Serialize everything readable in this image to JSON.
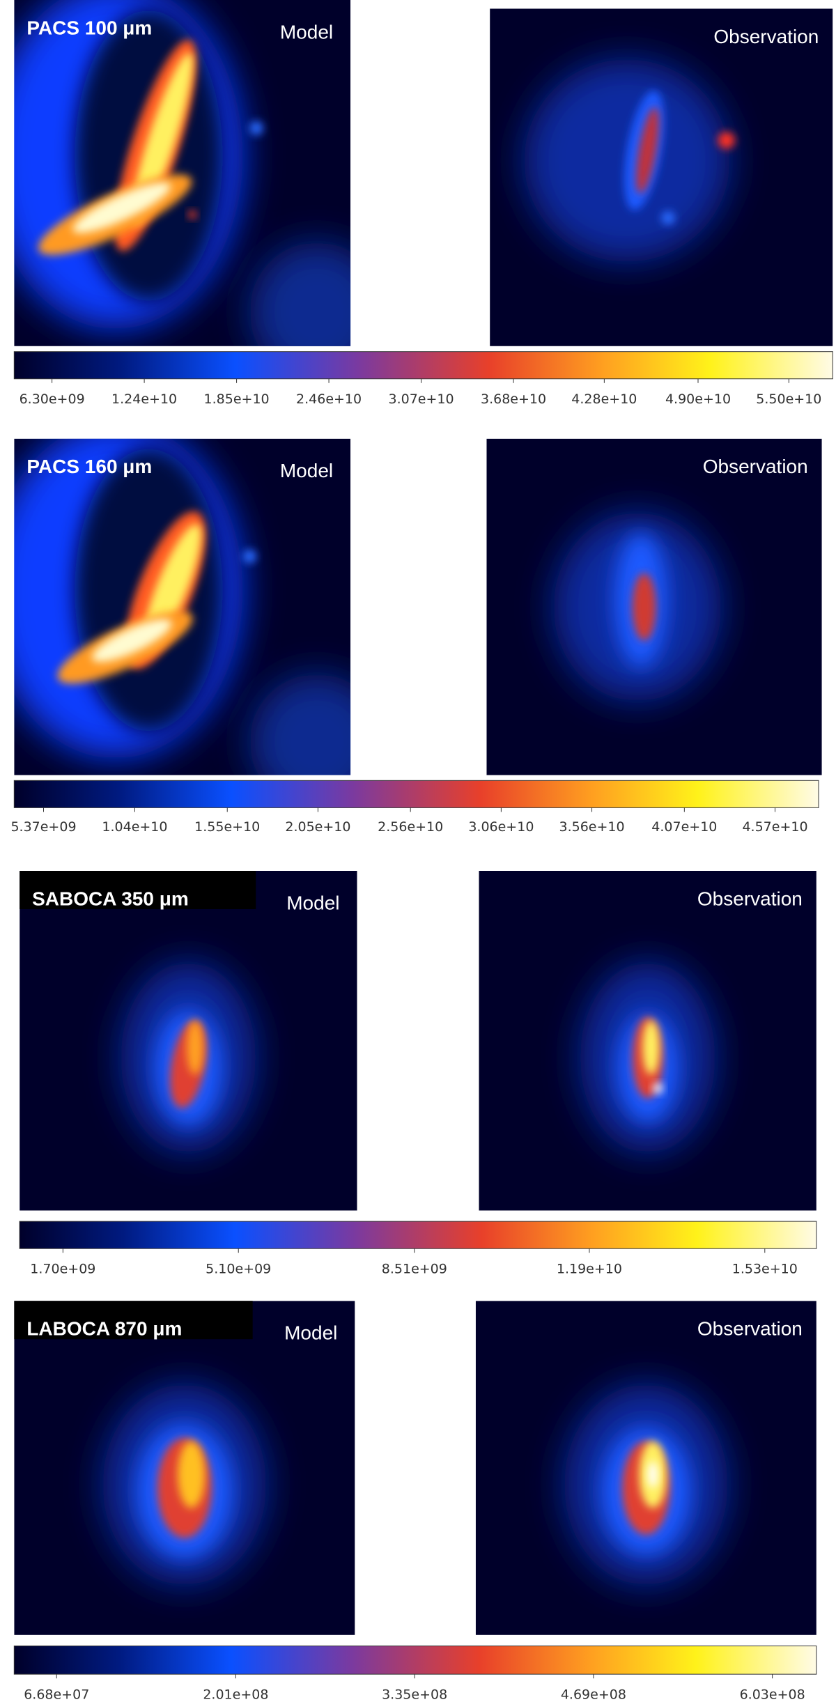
{
  "chart_data": [
    {
      "type": "image-pair",
      "title": "PACS 100 μm",
      "model_label": "Model",
      "observation_label": "Observation",
      "lim": [
        3800000000,
        57900000000
      ],
      "ticks": [
        {
          "value": 6300000000,
          "label": "6.30e+09"
        },
        {
          "value": 12400000000,
          "label": "1.24e+10"
        },
        {
          "value": 18500000000,
          "label": "1.85e+10"
        },
        {
          "value": 24600000000,
          "label": "2.46e+10"
        },
        {
          "value": 30700000000,
          "label": "3.07e+10"
        },
        {
          "value": 36800000000,
          "label": "3.68e+10"
        },
        {
          "value": 42800000000,
          "label": "4.28e+10"
        },
        {
          "value": 49000000000,
          "label": "4.90e+10"
        },
        {
          "value": 55000000000,
          "label": "5.50e+10"
        }
      ]
    },
    {
      "type": "image-pair",
      "title": "PACS 160 μm",
      "model_label": "Model",
      "observation_label": "Observation",
      "lim": [
        3750000000,
        48100000000
      ],
      "ticks": [
        {
          "value": 5370000000,
          "label": "5.37e+09"
        },
        {
          "value": 10400000000,
          "label": "1.04e+10"
        },
        {
          "value": 15500000000,
          "label": "1.55e+10"
        },
        {
          "value": 20500000000,
          "label": "2.05e+10"
        },
        {
          "value": 25600000000,
          "label": "2.56e+10"
        },
        {
          "value": 30600000000,
          "label": "3.06e+10"
        },
        {
          "value": 35600000000,
          "label": "3.56e+10"
        },
        {
          "value": 40700000000,
          "label": "4.07e+10"
        },
        {
          "value": 45700000000,
          "label": "4.57e+10"
        }
      ]
    },
    {
      "type": "image-pair",
      "title": "SABOCA 350 μm",
      "model_label": "Model",
      "observation_label": "Observation",
      "lim": [
        860000000,
        16300000000
      ],
      "ticks": [
        {
          "value": 1700000000,
          "label": "1.70e+09"
        },
        {
          "value": 5100000000,
          "label": "5.10e+09"
        },
        {
          "value": 8510000000,
          "label": "8.51e+09"
        },
        {
          "value": 11900000000,
          "label": "1.19e+10"
        },
        {
          "value": 15300000000,
          "label": "1.53e+10"
        }
      ]
    },
    {
      "type": "image-pair",
      "title": "LABOCA 870 μm",
      "model_label": "Model",
      "observation_label": "Observation",
      "lim": [
        35000000,
        636000000
      ],
      "ticks": [
        {
          "value": 66800000,
          "label": "6.68e+07"
        },
        {
          "value": 201000000,
          "label": "2.01e+08"
        },
        {
          "value": 335000000,
          "label": "3.35e+08"
        },
        {
          "value": 469000000,
          "label": "4.69e+08"
        },
        {
          "value": 603000000,
          "label": "6.03e+08"
        }
      ]
    }
  ]
}
